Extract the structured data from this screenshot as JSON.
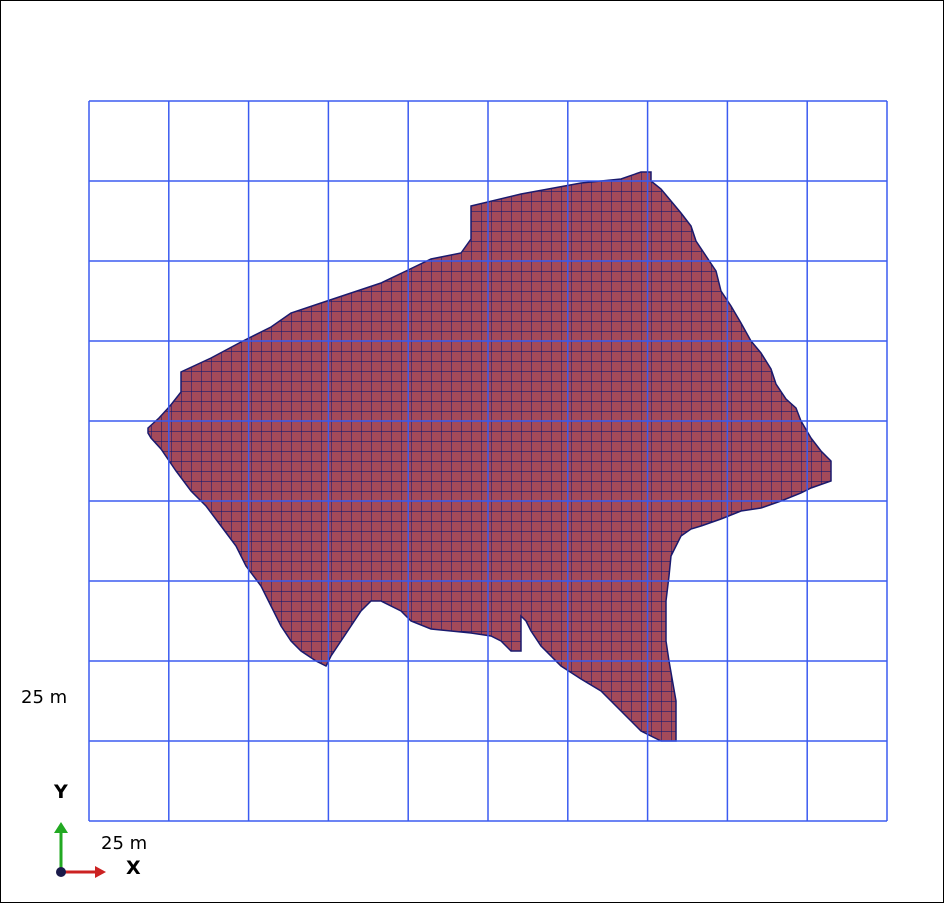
{
  "scale": {
    "y_label": "25 m",
    "x_label": "25 m"
  },
  "axes": {
    "y_label": "Y",
    "x_label": "X",
    "y_color": "#22a922",
    "x_color": "#cc2222",
    "origin_color": "#1a1a4a"
  },
  "colors": {
    "grid": "#3b5bf0",
    "mesh_fill": "#a34a5a",
    "mesh_edge": "#1a1a6e",
    "background": "#ffffff"
  },
  "grid": {
    "columns": 10,
    "rows": 9,
    "cell_size_m": 25
  }
}
